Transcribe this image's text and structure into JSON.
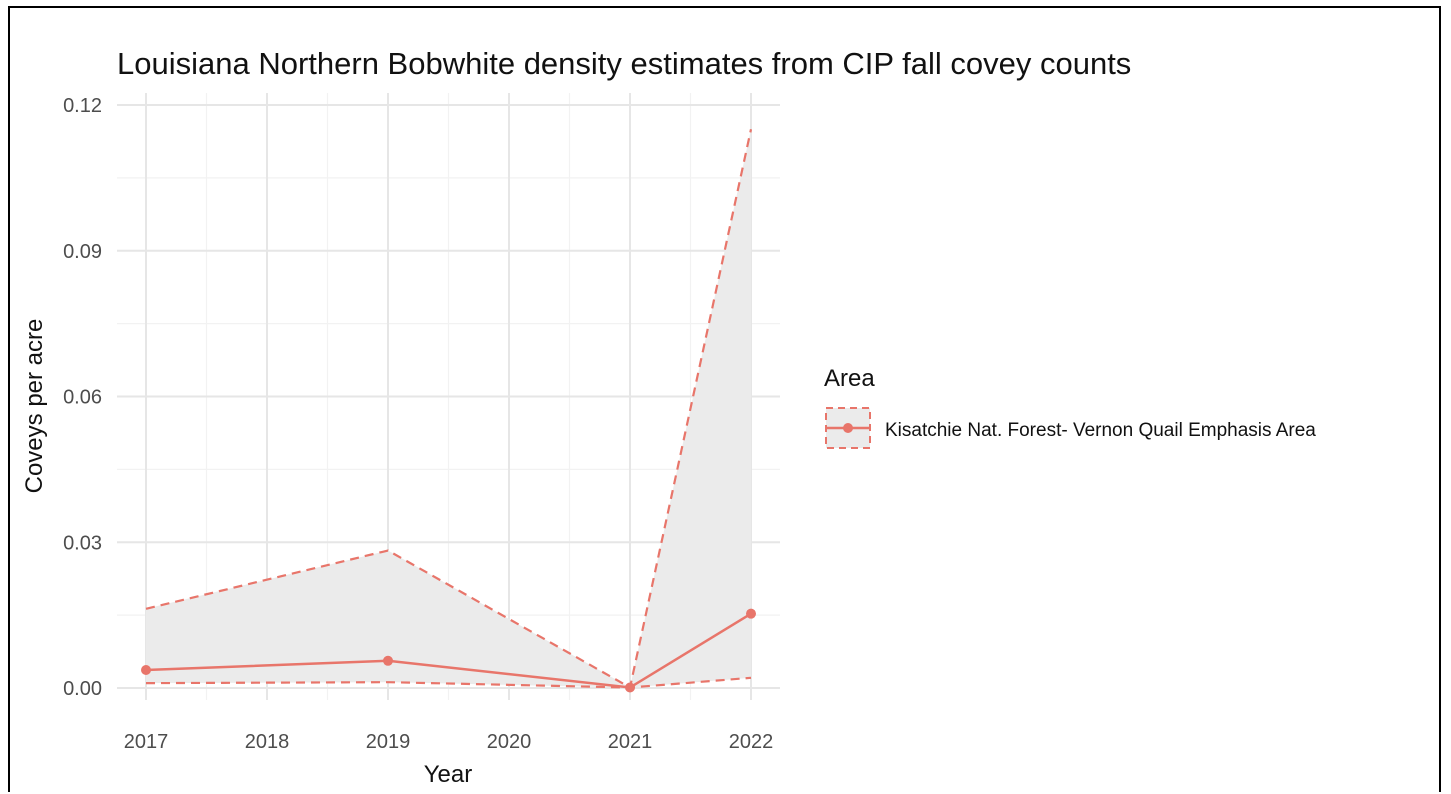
{
  "chart_data": {
    "type": "line",
    "title": "Louisiana Northern Bobwhite density estimates from CIP fall covey counts",
    "xlabel": "Year",
    "ylabel": "Coveys per acre",
    "x": [
      2017,
      2019,
      2021,
      2022
    ],
    "x_ticks": [
      "2017",
      "2018",
      "2019",
      "2020",
      "2021",
      "2022"
    ],
    "x_tick_values": [
      2017,
      2018,
      2019,
      2020,
      2021,
      2022
    ],
    "y_ticks": [
      "0.00",
      "0.03",
      "0.06",
      "0.09",
      "0.12"
    ],
    "y_tick_values": [
      0,
      0.03,
      0.06,
      0.09,
      0.12
    ],
    "xlim": [
      2017,
      2022
    ],
    "ylim": [
      0,
      0.12
    ],
    "grid": true,
    "legend_position": "right",
    "series": [
      {
        "name": "Kisatchie Nat. Forest- Vernon Quail Emphasis Area",
        "values": [
          0.0037,
          0.0056,
          0.0001,
          0.0153
        ],
        "lower": [
          0.001,
          0.0012,
          0.0001,
          0.0021
        ],
        "upper": [
          0.0163,
          0.0283,
          0.0001,
          0.115
        ],
        "color": "#E8756A"
      }
    ],
    "legend_title": "Area"
  }
}
